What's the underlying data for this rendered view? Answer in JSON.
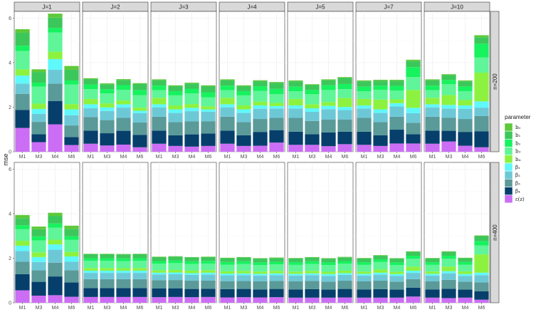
{
  "chart_data": {
    "type": "bar",
    "stacked": true,
    "ylabel": "mse",
    "ylim": [
      0,
      6.3
    ],
    "yticks": [
      0,
      2,
      4,
      6
    ],
    "categories": [
      "M1",
      "M3",
      "M4",
      "M6"
    ],
    "column_facets": [
      "J=1",
      "J=2",
      "J=3",
      "J=4",
      "J=5",
      "J=7",
      "J=10"
    ],
    "row_facets": [
      "n=200",
      "n=400"
    ],
    "legend": {
      "title": "parameter",
      "position": "right",
      "entries": [
        "b₀",
        "b₁",
        "b₂",
        "b₃",
        "b₄",
        "β₁",
        "β₂",
        "β₃",
        "β₄",
        "ε(z)"
      ],
      "colors": [
        "#5ec93a",
        "#3cc75a",
        "#17f25f",
        "#5ff598",
        "#8df23f",
        "#5ff8fb",
        "#6dc8d6",
        "#5a9a98",
        "#063f6b",
        "#cc6ef5"
      ]
    },
    "grid": true,
    "panels": [
      {
        "row": "n=200",
        "col": "J=1",
        "bars": [
          [
            0.16,
            0.58,
            0.24,
            0.82,
            0.28,
            0.36,
            0.46,
            0.72,
            0.81,
            1.07
          ],
          [
            0.12,
            0.48,
            0.18,
            0.76,
            0.24,
            0.22,
            0.36,
            0.55,
            0.36,
            0.43
          ],
          [
            0.18,
            0.46,
            0.21,
            0.86,
            0.33,
            0.48,
            0.62,
            0.78,
            1.05,
            1.23
          ],
          [
            0.17,
            0.48,
            0.18,
            0.88,
            0.24,
            0.26,
            0.46,
            0.52,
            0.36,
            0.3
          ]
        ]
      },
      {
        "row": "n=200",
        "col": "J=2",
        "bars": [
          [
            0.04,
            0.24,
            0.21,
            0.44,
            0.24,
            0.18,
            0.39,
            0.61,
            0.59,
            0.36
          ],
          [
            0.04,
            0.22,
            0.19,
            0.45,
            0.18,
            0.16,
            0.41,
            0.59,
            0.55,
            0.28
          ],
          [
            0.04,
            0.23,
            0.21,
            0.48,
            0.17,
            0.15,
            0.46,
            0.58,
            0.62,
            0.32
          ],
          [
            0.04,
            0.27,
            0.23,
            0.56,
            0.14,
            0.11,
            0.42,
            0.55,
            0.56,
            0.2
          ]
        ]
      },
      {
        "row": "n=200",
        "col": "J=3",
        "bars": [
          [
            0.04,
            0.24,
            0.21,
            0.34,
            0.29,
            0.14,
            0.42,
            0.62,
            0.59,
            0.36
          ],
          [
            0.04,
            0.22,
            0.19,
            0.45,
            0.18,
            0.16,
            0.41,
            0.59,
            0.48,
            0.26
          ],
          [
            0.04,
            0.23,
            0.21,
            0.48,
            0.17,
            0.15,
            0.46,
            0.58,
            0.55,
            0.23
          ],
          [
            0.04,
            0.27,
            0.23,
            0.4,
            0.14,
            0.11,
            0.42,
            0.55,
            0.56,
            0.26
          ]
        ]
      },
      {
        "row": "n=200",
        "col": "J=4",
        "bars": [
          [
            0.04,
            0.24,
            0.21,
            0.34,
            0.29,
            0.14,
            0.42,
            0.62,
            0.59,
            0.36
          ],
          [
            0.04,
            0.22,
            0.19,
            0.45,
            0.18,
            0.16,
            0.41,
            0.59,
            0.48,
            0.26
          ],
          [
            0.04,
            0.23,
            0.21,
            0.48,
            0.17,
            0.15,
            0.46,
            0.58,
            0.62,
            0.27
          ],
          [
            0.04,
            0.27,
            0.23,
            0.4,
            0.14,
            0.11,
            0.42,
            0.55,
            0.56,
            0.41
          ]
        ]
      },
      {
        "row": "n=200",
        "col": "J=5",
        "bars": [
          [
            0.04,
            0.24,
            0.21,
            0.34,
            0.29,
            0.14,
            0.42,
            0.62,
            0.59,
            0.31
          ],
          [
            0.04,
            0.22,
            0.19,
            0.45,
            0.18,
            0.16,
            0.41,
            0.59,
            0.48,
            0.31
          ],
          [
            0.04,
            0.23,
            0.21,
            0.54,
            0.17,
            0.15,
            0.46,
            0.58,
            0.62,
            0.25
          ],
          [
            0.04,
            0.27,
            0.23,
            0.4,
            0.4,
            0.14,
            0.42,
            0.55,
            0.56,
            0.34
          ]
        ]
      },
      {
        "row": "n=200",
        "col": "J=7",
        "bars": [
          [
            0.04,
            0.24,
            0.21,
            0.34,
            0.29,
            0.14,
            0.42,
            0.62,
            0.59,
            0.31
          ],
          [
            0.04,
            0.22,
            0.19,
            0.44,
            0.44,
            0.16,
            0.41,
            0.59,
            0.48,
            0.26
          ],
          [
            0.04,
            0.23,
            0.21,
            0.4,
            0.17,
            0.15,
            0.46,
            0.58,
            0.62,
            0.37
          ],
          [
            0.06,
            0.27,
            0.45,
            0.58,
            0.8,
            0.24,
            0.43,
            0.51,
            0.42,
            0.37
          ]
        ]
      },
      {
        "row": "n=200",
        "col": "J=10",
        "bars": [
          [
            0.04,
            0.24,
            0.21,
            0.34,
            0.29,
            0.14,
            0.42,
            0.62,
            0.59,
            0.36
          ],
          [
            0.04,
            0.22,
            0.19,
            0.49,
            0.44,
            0.16,
            0.41,
            0.59,
            0.48,
            0.46
          ],
          [
            0.04,
            0.23,
            0.21,
            0.4,
            0.24,
            0.15,
            0.46,
            0.58,
            0.62,
            0.27
          ],
          [
            0.09,
            0.29,
            0.62,
            0.68,
            1.29,
            0.28,
            0.38,
            0.68,
            0.72,
            0.2
          ]
        ]
      },
      {
        "row": "n=400",
        "col": "J=1",
        "bars": [
          [
            0.14,
            0.32,
            0.18,
            0.52,
            0.22,
            0.24,
            0.48,
            0.56,
            0.72,
            0.56
          ],
          [
            0.12,
            0.32,
            0.18,
            0.54,
            0.21,
            0.22,
            0.37,
            0.52,
            0.62,
            0.32
          ],
          [
            0.14,
            0.34,
            0.19,
            0.54,
            0.21,
            0.24,
            0.58,
            0.62,
            0.84,
            0.34
          ],
          [
            0.14,
            0.34,
            0.16,
            0.54,
            0.2,
            0.24,
            0.38,
            0.55,
            0.64,
            0.27
          ]
        ]
      },
      {
        "row": "n=400",
        "col": "J=2",
        "bars": [
          [
            0.02,
            0.18,
            0.12,
            0.32,
            0.12,
            0.1,
            0.28,
            0.4,
            0.4,
            0.26
          ],
          [
            0.02,
            0.18,
            0.12,
            0.32,
            0.12,
            0.1,
            0.28,
            0.4,
            0.4,
            0.26
          ],
          [
            0.02,
            0.18,
            0.12,
            0.32,
            0.11,
            0.1,
            0.28,
            0.4,
            0.4,
            0.26
          ],
          [
            0.02,
            0.18,
            0.12,
            0.32,
            0.12,
            0.1,
            0.28,
            0.4,
            0.4,
            0.26
          ]
        ]
      },
      {
        "row": "n=400",
        "col": "J=3",
        "bars": [
          [
            0.02,
            0.18,
            0.12,
            0.3,
            0.1,
            0.08,
            0.26,
            0.37,
            0.39,
            0.25
          ],
          [
            0.02,
            0.17,
            0.12,
            0.31,
            0.11,
            0.08,
            0.26,
            0.37,
            0.39,
            0.26
          ],
          [
            0.02,
            0.17,
            0.12,
            0.3,
            0.11,
            0.08,
            0.26,
            0.37,
            0.37,
            0.25
          ],
          [
            0.02,
            0.17,
            0.12,
            0.3,
            0.11,
            0.09,
            0.26,
            0.37,
            0.37,
            0.26
          ]
        ]
      },
      {
        "row": "n=400",
        "col": "J=4",
        "bars": [
          [
            0.02,
            0.17,
            0.12,
            0.3,
            0.1,
            0.08,
            0.26,
            0.36,
            0.37,
            0.24
          ],
          [
            0.02,
            0.17,
            0.12,
            0.31,
            0.11,
            0.08,
            0.26,
            0.36,
            0.37,
            0.25
          ],
          [
            0.02,
            0.17,
            0.12,
            0.29,
            0.1,
            0.08,
            0.26,
            0.36,
            0.36,
            0.24
          ],
          [
            0.02,
            0.17,
            0.12,
            0.29,
            0.11,
            0.08,
            0.26,
            0.36,
            0.37,
            0.25
          ]
        ]
      },
      {
        "row": "n=400",
        "col": "J=5",
        "bars": [
          [
            0.02,
            0.17,
            0.12,
            0.3,
            0.1,
            0.08,
            0.26,
            0.36,
            0.37,
            0.23
          ],
          [
            0.02,
            0.17,
            0.12,
            0.31,
            0.11,
            0.08,
            0.26,
            0.37,
            0.38,
            0.23
          ],
          [
            0.02,
            0.17,
            0.12,
            0.3,
            0.1,
            0.08,
            0.26,
            0.36,
            0.36,
            0.23
          ],
          [
            0.02,
            0.17,
            0.12,
            0.31,
            0.11,
            0.08,
            0.26,
            0.37,
            0.38,
            0.24
          ]
        ]
      },
      {
        "row": "n=400",
        "col": "J=7",
        "bars": [
          [
            0.02,
            0.17,
            0.12,
            0.3,
            0.1,
            0.08,
            0.26,
            0.36,
            0.37,
            0.23
          ],
          [
            0.02,
            0.17,
            0.12,
            0.34,
            0.14,
            0.09,
            0.27,
            0.38,
            0.38,
            0.23
          ],
          [
            0.02,
            0.17,
            0.12,
            0.3,
            0.1,
            0.08,
            0.26,
            0.36,
            0.36,
            0.23
          ],
          [
            0.02,
            0.18,
            0.13,
            0.36,
            0.18,
            0.1,
            0.28,
            0.38,
            0.4,
            0.28
          ]
        ]
      },
      {
        "row": "n=400",
        "col": "J=10",
        "bars": [
          [
            0.02,
            0.17,
            0.12,
            0.3,
            0.1,
            0.08,
            0.26,
            0.36,
            0.37,
            0.23
          ],
          [
            0.02,
            0.18,
            0.13,
            0.36,
            0.2,
            0.1,
            0.29,
            0.4,
            0.42,
            0.21
          ],
          [
            0.02,
            0.17,
            0.12,
            0.3,
            0.12,
            0.08,
            0.26,
            0.36,
            0.36,
            0.23
          ],
          [
            0.03,
            0.22,
            0.2,
            0.4,
            0.82,
            0.11,
            0.32,
            0.4,
            0.38,
            0.14
          ]
        ]
      }
    ]
  }
}
